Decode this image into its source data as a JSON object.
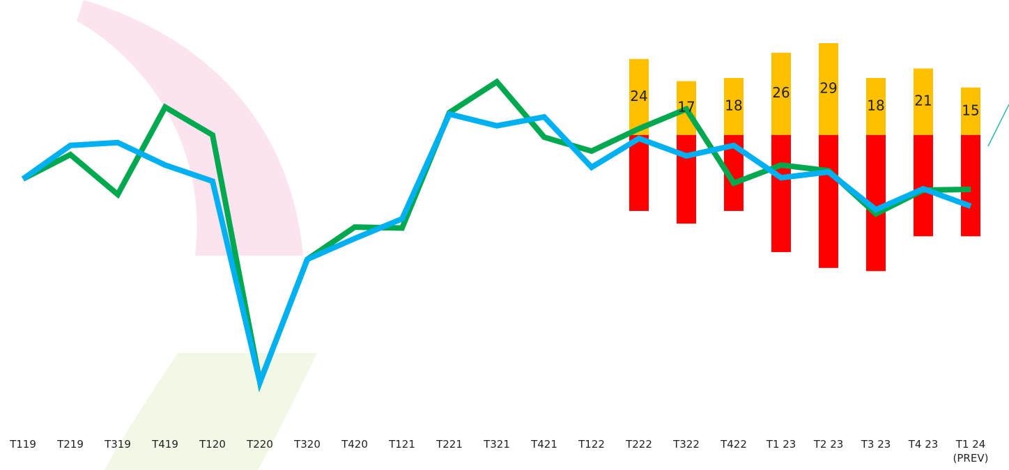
{
  "chart_data": {
    "type": "bar-line",
    "categories": [
      "T119",
      "T219",
      "T319",
      "T419",
      "T120",
      "T220",
      "T320",
      "T420",
      "T121",
      "T221",
      "T321",
      "T421",
      "T122",
      "T222",
      "T322",
      "T422",
      "T1 23",
      "T2 23",
      "T3 23",
      "T4 23",
      "T1 24 (PREV)"
    ],
    "ylim": [
      -90,
      40
    ],
    "grid": true,
    "series": [
      {
        "type": "bar",
        "color": "#ffc000",
        "show_labels": true,
        "values": [
          null,
          null,
          null,
          null,
          null,
          null,
          null,
          null,
          null,
          null,
          null,
          null,
          null,
          24,
          17,
          18,
          26,
          29,
          18,
          21,
          15
        ]
      },
      {
        "type": "bar",
        "color": "#ff0000",
        "show_labels": false,
        "values": [
          null,
          null,
          null,
          null,
          null,
          null,
          null,
          null,
          null,
          null,
          null,
          null,
          null,
          -24,
          -28,
          -24,
          -37,
          -42,
          -43,
          -32,
          -32
        ]
      },
      {
        "type": "line",
        "color": "#00a84f",
        "values": [
          -13.9,
          -6.2,
          -18.8,
          8.8,
          0,
          -78.1,
          -39.3,
          -29.1,
          -29.4,
          7.1,
          16.8,
          -0.7,
          -5.1,
          2,
          8.2,
          -15.2,
          -9.5,
          -11.3,
          -24.9,
          -17.4,
          -17.2
        ]
      },
      {
        "type": "line",
        "color": "#00b0f0",
        "values": [
          -13.9,
          -3.3,
          -2.4,
          -9.5,
          -14.6,
          -78.1,
          -39.3,
          -32.7,
          -26.5,
          6.6,
          2.9,
          5.7,
          -10.2,
          -1.1,
          -6.6,
          -3.3,
          -13.5,
          -11.7,
          -23.6,
          -17,
          -22.5
        ]
      }
    ]
  }
}
